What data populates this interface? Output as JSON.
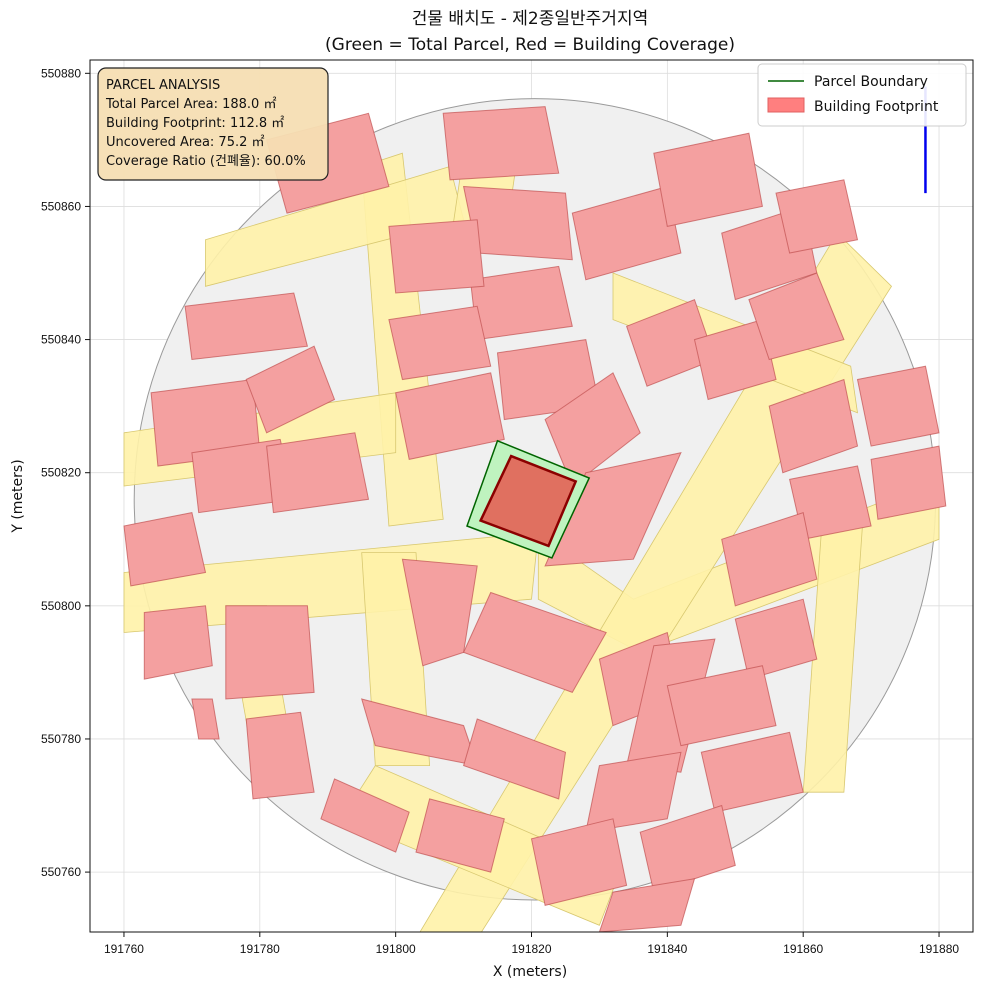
{
  "chart_data": {
    "type": "map",
    "title": "건물 배치도 - 제2종일반주거지역",
    "subtitle": "(Green = Total Parcel, Red = Building Coverage)",
    "xlabel": "X (meters)",
    "ylabel": "Y (meters)",
    "xlim": [
      191755,
      191885
    ],
    "ylim": [
      550751,
      550882
    ],
    "xticks": [
      191760,
      191780,
      191800,
      191820,
      191840,
      191860,
      191880
    ],
    "yticks": [
      550760,
      550780,
      550800,
      550820,
      550840,
      550860,
      550880
    ],
    "grid": true,
    "legend_position": "top-right",
    "legend": [
      {
        "label": "Parcel Boundary",
        "color": "#006400"
      },
      {
        "label": "Building Footprint",
        "color": "#ff7f7f"
      }
    ],
    "info_box": {
      "title": "PARCEL ANALYSIS",
      "lines": [
        "Total Parcel Area: 188.0 ㎡",
        "Building Footprint: 112.8 ㎡",
        "Uncovered Area: 75.2 ㎡",
        "Coverage Ratio (건폐율): 60.0%"
      ]
    },
    "target_parcel": [
      [
        191815,
        550824.8
      ],
      [
        191828.5,
        550819.2
      ],
      [
        191823,
        550807.2
      ],
      [
        191810.5,
        550812
      ]
    ],
    "target_building": [
      [
        191817,
        550822.5
      ],
      [
        191826.5,
        550818.7
      ],
      [
        191822.5,
        550809
      ],
      [
        191812.5,
        550812.8
      ]
    ],
    "boundary_circle": {
      "cx": 191820.5,
      "cy": 550816,
      "r": 59
    },
    "roads": [
      [
        [
          191795,
          550866
        ],
        [
          191801,
          550868
        ],
        [
          191807,
          550813
        ],
        [
          191799,
          550812
        ]
      ],
      [
        [
          191760,
          550805
        ],
        [
          191821,
          550811
        ],
        [
          191820,
          550801
        ],
        [
          191760,
          550796
        ]
      ],
      [
        [
          191821,
          550811
        ],
        [
          191835,
          550801
        ],
        [
          191880,
          550819
        ],
        [
          191880,
          550810
        ],
        [
          191836,
          550793
        ],
        [
          191821,
          550801
        ]
      ],
      [
        [
          191865,
          550856
        ],
        [
          191873,
          550848
        ],
        [
          191812,
          550750
        ],
        [
          191803,
          550750
        ]
      ],
      [
        [
          191795,
          550808
        ],
        [
          191803,
          550808
        ],
        [
          191805,
          550776
        ],
        [
          191797,
          550776
        ]
      ],
      [
        [
          191797,
          550776
        ],
        [
          191833,
          550760
        ],
        [
          191830,
          550752
        ],
        [
          191792,
          550768
        ]
      ],
      [
        [
          191760,
          550826
        ],
        [
          191800,
          550832
        ],
        [
          191800,
          550823
        ],
        [
          191760,
          550818
        ]
      ],
      [
        [
          191772,
          550855
        ],
        [
          191808,
          550866
        ],
        [
          191810,
          550858
        ],
        [
          191772,
          550848
        ]
      ],
      [
        [
          191810,
          550868
        ],
        [
          191818,
          550868
        ],
        [
          191816,
          550854
        ],
        [
          191808,
          550854
        ]
      ],
      [
        [
          191832,
          550850
        ],
        [
          191867,
          550836
        ],
        [
          191868,
          550829
        ],
        [
          191832,
          550843
        ]
      ],
      [
        [
          191775,
          550800
        ],
        [
          191781,
          550800
        ],
        [
          191785,
          550777
        ],
        [
          191779,
          550777
        ]
      ],
      [
        [
          191863,
          550816
        ],
        [
          191869,
          550816
        ],
        [
          191866,
          550772
        ],
        [
          191860,
          550772
        ]
      ]
    ],
    "buildings": [
      [
        [
          191781,
          550870
        ],
        [
          191796,
          550874
        ],
        [
          191799,
          550863
        ],
        [
          191784,
          550859
        ]
      ],
      [
        [
          191807,
          550874
        ],
        [
          191822,
          550875
        ],
        [
          191824,
          550865
        ],
        [
          191808,
          550864
        ]
      ],
      [
        [
          191810,
          550863
        ],
        [
          191825,
          550862
        ],
        [
          191826,
          550852
        ],
        [
          191812,
          550853
        ]
      ],
      [
        [
          191811,
          550849
        ],
        [
          191824,
          550851
        ],
        [
          191826,
          550842
        ],
        [
          191812,
          550840
        ]
      ],
      [
        [
          191799,
          550857
        ],
        [
          191812,
          550858
        ],
        [
          191813,
          550848
        ],
        [
          191800,
          550847
        ]
      ],
      [
        [
          191769,
          550845
        ],
        [
          191785,
          550847
        ],
        [
          191787,
          550839
        ],
        [
          191770,
          550837
        ]
      ],
      [
        [
          191764,
          550832
        ],
        [
          191779,
          550834
        ],
        [
          191780,
          550823
        ],
        [
          191765,
          550821
        ]
      ],
      [
        [
          191778,
          550834
        ],
        [
          191788,
          550839
        ],
        [
          191791,
          550831
        ],
        [
          191781,
          550826
        ]
      ],
      [
        [
          191799,
          550843
        ],
        [
          191812,
          550845
        ],
        [
          191814,
          550836
        ],
        [
          191801,
          550834
        ]
      ],
      [
        [
          191800,
          550832
        ],
        [
          191814,
          550835
        ],
        [
          191816,
          550825
        ],
        [
          191802,
          550822
        ]
      ],
      [
        [
          191815,
          550838
        ],
        [
          191828,
          550840
        ],
        [
          191830,
          550830
        ],
        [
          191816,
          550828
        ]
      ],
      [
        [
          191770,
          550823
        ],
        [
          191783,
          550825
        ],
        [
          191785,
          550816
        ],
        [
          191771,
          550814
        ]
      ],
      [
        [
          191781,
          550824
        ],
        [
          191794,
          550826
        ],
        [
          191796,
          550816
        ],
        [
          191782,
          550814
        ]
      ],
      [
        [
          191760,
          550812
        ],
        [
          191770,
          550814
        ],
        [
          191772,
          550805
        ],
        [
          191761,
          550803
        ]
      ],
      [
        [
          191763,
          550799
        ],
        [
          191772,
          550800
        ],
        [
          191773,
          550791
        ],
        [
          191763,
          550789
        ]
      ],
      [
        [
          191775,
          550800
        ],
        [
          191787,
          550800
        ],
        [
          191788,
          550787
        ],
        [
          191775,
          550786
        ]
      ],
      [
        [
          191770,
          550786
        ],
        [
          191773,
          550786
        ],
        [
          191774,
          550780
        ],
        [
          191771,
          550780
        ]
      ],
      [
        [
          191778,
          550783
        ],
        [
          191786,
          550784
        ],
        [
          191788,
          550772
        ],
        [
          191779,
          550771
        ]
      ],
      [
        [
          191801,
          550807
        ],
        [
          191812,
          550806
        ],
        [
          191810,
          550793
        ],
        [
          191804,
          550791
        ]
      ],
      [
        [
          191814,
          550802
        ],
        [
          191831,
          550796
        ],
        [
          191826,
          550787
        ],
        [
          191810,
          550793
        ]
      ],
      [
        [
          191795,
          550786
        ],
        [
          191810,
          550782
        ],
        [
          191812,
          550776
        ],
        [
          191797,
          550779
        ]
      ],
      [
        [
          191812,
          550783
        ],
        [
          191825,
          550778
        ],
        [
          191824,
          550771
        ],
        [
          191810,
          550776
        ]
      ],
      [
        [
          191791,
          550774
        ],
        [
          191802,
          550769
        ],
        [
          191800,
          550763
        ],
        [
          191789,
          550768
        ]
      ],
      [
        [
          191805,
          550771
        ],
        [
          191816,
          550768
        ],
        [
          191814,
          550760
        ],
        [
          191803,
          550763
        ]
      ],
      [
        [
          191830,
          550792
        ],
        [
          191840,
          550796
        ],
        [
          191842,
          550786
        ],
        [
          191832,
          550782
        ]
      ],
      [
        [
          191838,
          550794
        ],
        [
          191847,
          550795
        ],
        [
          191842,
          550775
        ],
        [
          191834,
          550776
        ]
      ],
      [
        [
          191822,
          550828
        ],
        [
          191832,
          550835
        ],
        [
          191836,
          550826
        ],
        [
          191826,
          550818
        ]
      ],
      [
        [
          191828,
          550820
        ],
        [
          191842,
          550823
        ],
        [
          191835,
          550807
        ],
        [
          191822,
          550806
        ]
      ],
      [
        [
          191834,
          550842
        ],
        [
          191844,
          550846
        ],
        [
          191847,
          550837
        ],
        [
          191837,
          550833
        ]
      ],
      [
        [
          191844,
          550840
        ],
        [
          191854,
          550843
        ],
        [
          191856,
          550834
        ],
        [
          191846,
          550831
        ]
      ],
      [
        [
          191826,
          550859
        ],
        [
          191840,
          550863
        ],
        [
          191842,
          550853
        ],
        [
          191828,
          550849
        ]
      ],
      [
        [
          191838,
          550868
        ],
        [
          191852,
          550871
        ],
        [
          191854,
          550860
        ],
        [
          191840,
          550857
        ]
      ],
      [
        [
          191848,
          550856
        ],
        [
          191860,
          550860
        ],
        [
          191862,
          550850
        ],
        [
          191850,
          550846
        ]
      ],
      [
        [
          191852,
          550846
        ],
        [
          191862,
          550850
        ],
        [
          191866,
          550840
        ],
        [
          191855,
          550837
        ]
      ],
      [
        [
          191855,
          550830
        ],
        [
          191866,
          550834
        ],
        [
          191868,
          550824
        ],
        [
          191857,
          550820
        ]
      ],
      [
        [
          191858,
          550819
        ],
        [
          191868,
          550821
        ],
        [
          191870,
          550812
        ],
        [
          191860,
          550810
        ]
      ],
      [
        [
          191868,
          550834
        ],
        [
          191878,
          550836
        ],
        [
          191880,
          550826
        ],
        [
          191870,
          550824
        ]
      ],
      [
        [
          191870,
          550822
        ],
        [
          191880,
          550824
        ],
        [
          191881,
          550815
        ],
        [
          191871,
          550813
        ]
      ],
      [
        [
          191848,
          550810
        ],
        [
          191860,
          550814
        ],
        [
          191862,
          550804
        ],
        [
          191850,
          550800
        ]
      ],
      [
        [
          191850,
          550798
        ],
        [
          191860,
          550801
        ],
        [
          191862,
          550792
        ],
        [
          191852,
          550789
        ]
      ],
      [
        [
          191840,
          550788
        ],
        [
          191854,
          550791
        ],
        [
          191856,
          550782
        ],
        [
          191842,
          550779
        ]
      ],
      [
        [
          191845,
          550778
        ],
        [
          191858,
          550781
        ],
        [
          191860,
          550772
        ],
        [
          191847,
          550769
        ]
      ],
      [
        [
          191830,
          550776
        ],
        [
          191842,
          550778
        ],
        [
          191840,
          550768
        ],
        [
          191828,
          550766
        ]
      ],
      [
        [
          191820,
          550765
        ],
        [
          191832,
          550768
        ],
        [
          191834,
          550758
        ],
        [
          191822,
          550755
        ]
      ],
      [
        [
          191836,
          550766
        ],
        [
          191848,
          550770
        ],
        [
          191850,
          550761
        ],
        [
          191838,
          550757
        ]
      ],
      [
        [
          191832,
          550757
        ],
        [
          191844,
          550759
        ],
        [
          191842,
          550752
        ],
        [
          191830,
          550751
        ]
      ],
      [
        [
          191856,
          550862
        ],
        [
          191866,
          550864
        ],
        [
          191868,
          550855
        ],
        [
          191858,
          550853
        ]
      ]
    ]
  }
}
